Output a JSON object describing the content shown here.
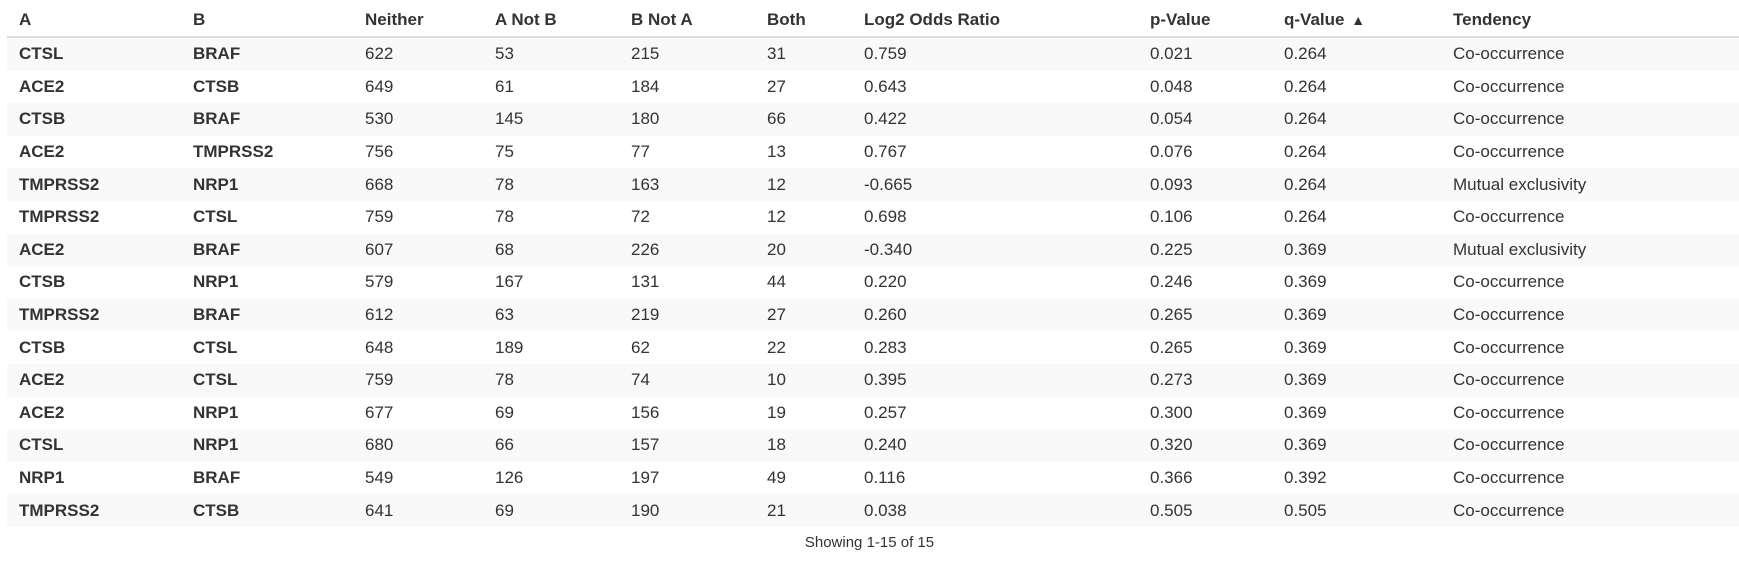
{
  "table": {
    "headers": [
      {
        "key": "a",
        "label": "A"
      },
      {
        "key": "b",
        "label": "B"
      },
      {
        "key": "neither",
        "label": "Neither"
      },
      {
        "key": "a_not_b",
        "label": "A Not B"
      },
      {
        "key": "b_not_a",
        "label": "B Not A"
      },
      {
        "key": "both",
        "label": "Both"
      },
      {
        "key": "log2",
        "label": "Log2 Odds Ratio"
      },
      {
        "key": "p",
        "label": "p-Value"
      },
      {
        "key": "q",
        "label": "q-Value",
        "sort_indicator": "▲"
      },
      {
        "key": "tendency",
        "label": "Tendency"
      }
    ],
    "rows": [
      [
        "CTSL",
        "BRAF",
        "622",
        "53",
        "215",
        "31",
        "0.759",
        "0.021",
        "0.264",
        "Co-occurrence"
      ],
      [
        "ACE2",
        "CTSB",
        "649",
        "61",
        "184",
        "27",
        "0.643",
        "0.048",
        "0.264",
        "Co-occurrence"
      ],
      [
        "CTSB",
        "BRAF",
        "530",
        "145",
        "180",
        "66",
        "0.422",
        "0.054",
        "0.264",
        "Co-occurrence"
      ],
      [
        "ACE2",
        "TMPRSS2",
        "756",
        "75",
        "77",
        "13",
        "0.767",
        "0.076",
        "0.264",
        "Co-occurrence"
      ],
      [
        "TMPRSS2",
        "NRP1",
        "668",
        "78",
        "163",
        "12",
        "-0.665",
        "0.093",
        "0.264",
        "Mutual exclusivity"
      ],
      [
        "TMPRSS2",
        "CTSL",
        "759",
        "78",
        "72",
        "12",
        "0.698",
        "0.106",
        "0.264",
        "Co-occurrence"
      ],
      [
        "ACE2",
        "BRAF",
        "607",
        "68",
        "226",
        "20",
        "-0.340",
        "0.225",
        "0.369",
        "Mutual exclusivity"
      ],
      [
        "CTSB",
        "NRP1",
        "579",
        "167",
        "131",
        "44",
        "0.220",
        "0.246",
        "0.369",
        "Co-occurrence"
      ],
      [
        "TMPRSS2",
        "BRAF",
        "612",
        "63",
        "219",
        "27",
        "0.260",
        "0.265",
        "0.369",
        "Co-occurrence"
      ],
      [
        "CTSB",
        "CTSL",
        "648",
        "189",
        "62",
        "22",
        "0.283",
        "0.265",
        "0.369",
        "Co-occurrence"
      ],
      [
        "ACE2",
        "CTSL",
        "759",
        "78",
        "74",
        "10",
        "0.395",
        "0.273",
        "0.369",
        "Co-occurrence"
      ],
      [
        "ACE2",
        "NRP1",
        "677",
        "69",
        "156",
        "19",
        "0.257",
        "0.300",
        "0.369",
        "Co-occurrence"
      ],
      [
        "CTSL",
        "NRP1",
        "680",
        "66",
        "157",
        "18",
        "0.240",
        "0.320",
        "0.369",
        "Co-occurrence"
      ],
      [
        "NRP1",
        "BRAF",
        "549",
        "126",
        "197",
        "49",
        "0.116",
        "0.366",
        "0.392",
        "Co-occurrence"
      ],
      [
        "TMPRSS2",
        "CTSB",
        "641",
        "69",
        "190",
        "21",
        "0.038",
        "0.505",
        "0.505",
        "Co-occurrence"
      ]
    ]
  },
  "footer": {
    "text": "Showing 1-15 of 15"
  }
}
